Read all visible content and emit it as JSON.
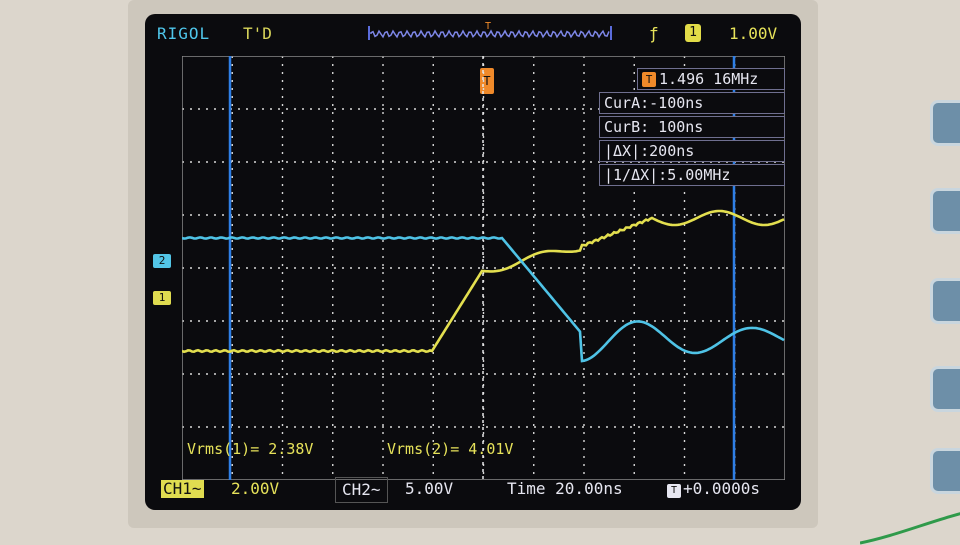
{
  "header": {
    "brand": "RIGOL",
    "trigger_state": "T'D",
    "trigger_edge_icon": "rising-edge-icon",
    "trigger_source": "1",
    "trigger_level": "1.00V"
  },
  "markers": {
    "ch2": "2",
    "ch1": "1",
    "trigger_position": "T"
  },
  "measurements": {
    "frequency": "1.496 16MHz",
    "frequency_badge": "T",
    "cursor_a": "CurA:-100ns",
    "cursor_b": "CurB: 100ns",
    "delta_x": "|ΔX|:200ns",
    "inv_delta_x": "|1/ΔX|:5.00MHz"
  },
  "readouts": {
    "vrms1": "Vrms(1)= 2.38V",
    "vrms2": "Vrms(2)= 4.01V"
  },
  "status": {
    "ch1_label": "CH1~",
    "ch1_scale": "2.00V",
    "ch2_label": "CH2~",
    "ch2_scale": "5.00V",
    "timebase": "Time 20.00ns",
    "trigger_badge": "T",
    "trigger_offset": "+0.0000s"
  },
  "colors": {
    "ch1": "#e3df4f",
    "ch2": "#4fc3e6",
    "cursor": "#2e7fe6",
    "trigger": "#f08a2a"
  }
}
